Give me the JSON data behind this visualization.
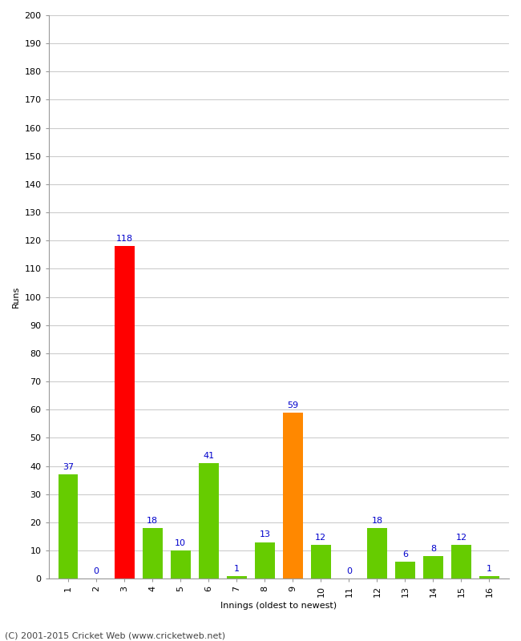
{
  "title": "",
  "xlabel": "Innings (oldest to newest)",
  "ylabel": "Runs",
  "categories": [
    1,
    2,
    3,
    4,
    5,
    6,
    7,
    8,
    9,
    10,
    11,
    12,
    13,
    14,
    15,
    16
  ],
  "values": [
    37,
    0,
    118,
    18,
    10,
    41,
    1,
    13,
    59,
    12,
    0,
    18,
    6,
    8,
    12,
    1
  ],
  "bar_colors": [
    "#66cc00",
    "#66cc00",
    "#ff0000",
    "#66cc00",
    "#66cc00",
    "#66cc00",
    "#66cc00",
    "#66cc00",
    "#ff8800",
    "#66cc00",
    "#66cc00",
    "#66cc00",
    "#66cc00",
    "#66cc00",
    "#66cc00",
    "#66cc00"
  ],
  "label_color": "#0000cc",
  "ylim": [
    0,
    200
  ],
  "ytick_step": 10,
  "background_color": "#ffffff",
  "grid_color": "#cccccc",
  "footer": "(C) 2001-2015 Cricket Web (www.cricketweb.net)",
  "axis_label_fontsize": 8,
  "tick_fontsize": 8,
  "bar_label_fontsize": 8,
  "footer_fontsize": 8,
  "bar_width": 0.7
}
